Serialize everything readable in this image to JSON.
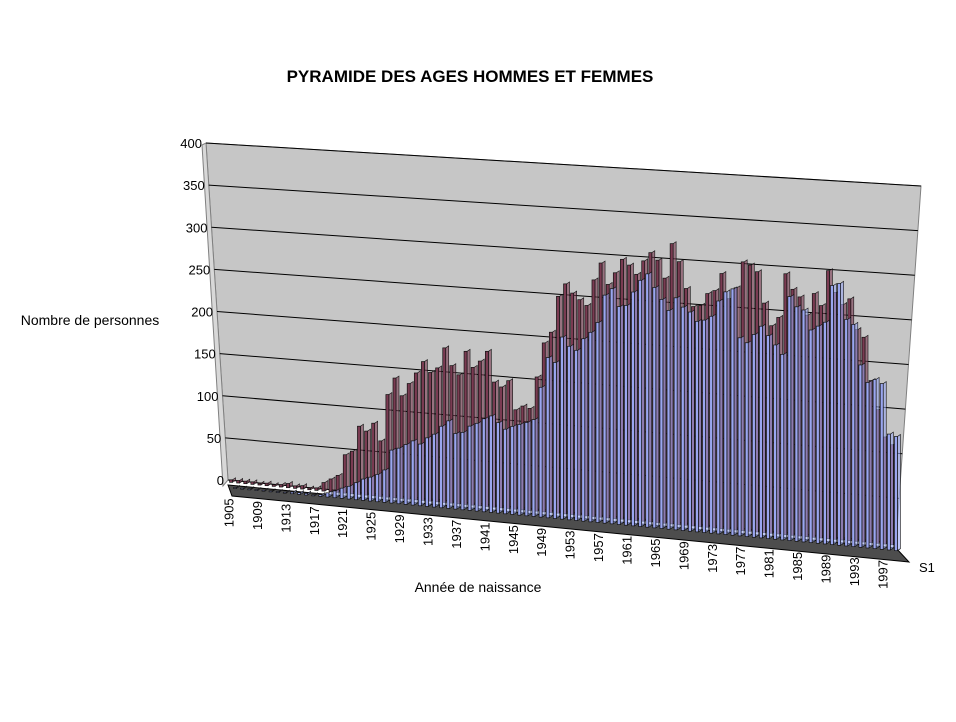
{
  "chart_data": {
    "type": "bar",
    "title": "PYRAMIDE DES AGES HOMMES ET FEMMES",
    "xlabel": "Année de naissance",
    "ylabel": "Nombre de personnes",
    "ylim": [
      0,
      400
    ],
    "yticks": [
      0,
      50,
      100,
      150,
      200,
      250,
      300,
      350,
      400
    ],
    "x_tick_labels": [
      "1905",
      "1909",
      "1913",
      "1917",
      "1921",
      "1925",
      "1929",
      "1933",
      "1937",
      "1941",
      "1945",
      "1949",
      "1953",
      "1957",
      "1961",
      "1965",
      "1969",
      "1973",
      "1977",
      "1981",
      "1985",
      "1989",
      "1993",
      "1997"
    ],
    "depth_label": "S1",
    "grid": true,
    "colors": {
      "men": "#7a3b52",
      "women": "#9aa6f0",
      "wall": "#c6c6c6",
      "floor": "#4d4d4d",
      "grid": "#000000"
    },
    "x": [
      1905,
      1906,
      1907,
      1908,
      1909,
      1910,
      1911,
      1912,
      1913,
      1914,
      1915,
      1916,
      1917,
      1918,
      1919,
      1920,
      1921,
      1922,
      1923,
      1924,
      1925,
      1926,
      1927,
      1928,
      1929,
      1930,
      1931,
      1932,
      1933,
      1934,
      1935,
      1936,
      1937,
      1938,
      1939,
      1940,
      1941,
      1942,
      1943,
      1944,
      1945,
      1946,
      1947,
      1948,
      1949,
      1950,
      1951,
      1952,
      1953,
      1954,
      1955,
      1956,
      1957,
      1958,
      1959,
      1960,
      1961,
      1962,
      1963,
      1964,
      1965,
      1966,
      1967,
      1968,
      1969,
      1970,
      1971,
      1972,
      1973,
      1974,
      1975,
      1976,
      1977,
      1978,
      1979,
      1980,
      1981,
      1982,
      1983,
      1984,
      1985,
      1986,
      1987,
      1988,
      1989,
      1990,
      1991,
      1992,
      1993,
      1994,
      1995,
      1996,
      1997,
      1998
    ],
    "series": [
      {
        "values": [
          3,
          3,
          3,
          3,
          2,
          3,
          2,
          3,
          5,
          3,
          4,
          2,
          3,
          10,
          15,
          20,
          45,
          50,
          80,
          75,
          85,
          65,
          120,
          140,
          120,
          135,
          148,
          162,
          150,
          156,
          180,
          160,
          150,
          178,
          160,
          168,
          180,
          145,
          140,
          148,
          115,
          120,
          118,
          155,
          195,
          208,
          250,
          265,
          255,
          248,
          242,
          272,
          292,
          268,
          282,
          298,
          292,
          282,
          298,
          308,
          300,
          280,
          320,
          300,
          270,
          250,
          252,
          266,
          270,
          290,
          262,
          275,
          305,
          302,
          295,
          260,
          235,
          245,
          295,
          278,
          270,
          250,
          275,
          262,
          302,
          278,
          265,
          272,
          238,
          230,
          182,
          150,
          120,
          112
        ]
      },
      {
        "values": [
          1,
          1,
          1,
          1,
          1,
          1,
          1,
          1,
          2,
          2,
          2,
          1,
          2,
          5,
          8,
          12,
          15,
          20,
          25,
          28,
          32,
          38,
          62,
          65,
          70,
          75,
          72,
          80,
          85,
          95,
          102,
          88,
          90,
          98,
          102,
          108,
          112,
          105,
          98,
          102,
          105,
          108,
          112,
          150,
          185,
          180,
          210,
          200,
          196,
          210,
          218,
          230,
          262,
          270,
          250,
          252,
          268,
          282,
          290,
          275,
          262,
          250,
          265,
          255,
          250,
          240,
          242,
          247,
          265,
          276,
          280,
          225,
          220,
          230,
          240,
          230,
          220,
          210,
          276,
          265,
          262,
          240,
          245,
          250,
          292,
          295,
          255,
          250,
          205,
          186,
          190,
          186,
          130,
          128
        ]
      }
    ]
  }
}
